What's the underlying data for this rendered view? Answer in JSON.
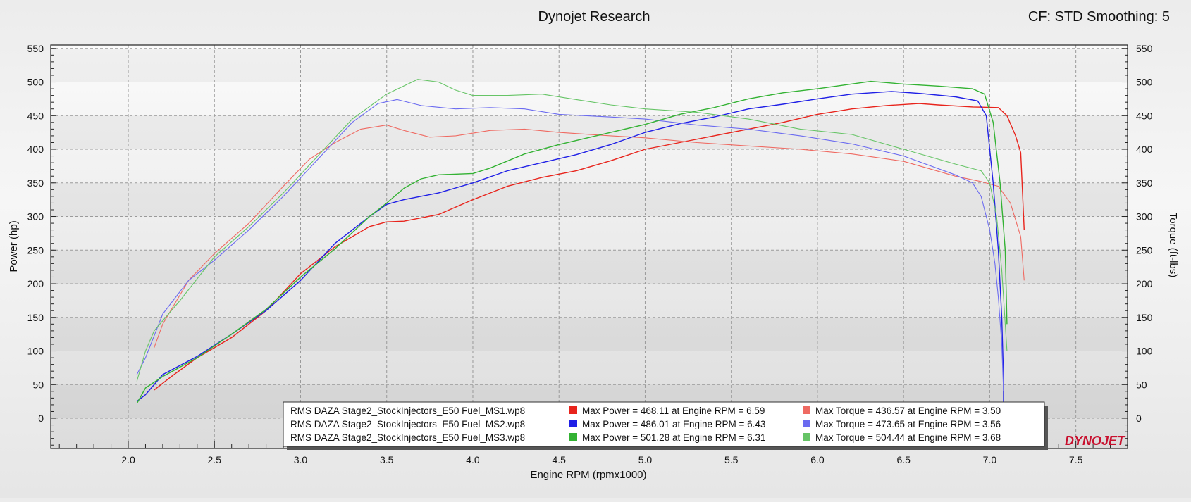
{
  "header": {
    "title": "Dynojet Research",
    "settings": "CF: STD Smoothing: 5"
  },
  "logo_text": "DYNOJET",
  "colors": {
    "run1_power": "#e8241c",
    "run1_torque": "#ef6a62",
    "run2_power": "#1f1fe6",
    "run2_torque": "#6b6bf0",
    "run3_power": "#33b233",
    "run3_torque": "#66c466"
  },
  "chart_data": {
    "type": "line",
    "title": "",
    "xlabel": "Engine RPM (rpmx1000)",
    "ylabel_left": "Power (hp)",
    "ylabel_right": "Torque (ft-lbs)",
    "xlim": [
      1.55,
      7.8
    ],
    "ylim": [
      -45,
      555
    ],
    "x_ticks": [
      2.0,
      2.5,
      3.0,
      3.5,
      4.0,
      4.5,
      5.0,
      5.5,
      6.0,
      6.5,
      7.0,
      7.5
    ],
    "x_tick_labels": [
      "2.0",
      "2.5",
      "3.0",
      "3.5",
      "4.0",
      "4.5",
      "5.0",
      "5.5",
      "6.0",
      "6.5",
      "7.0",
      "7.5"
    ],
    "y_ticks": [
      0,
      50,
      100,
      150,
      200,
      250,
      300,
      350,
      400,
      450,
      500,
      550
    ],
    "y_tick_labels": [
      "0",
      "50",
      "100",
      "150",
      "200",
      "250",
      "300",
      "350",
      "400",
      "450",
      "500",
      "550"
    ],
    "grid": true,
    "legend_position": "bottom-center",
    "series": [
      {
        "name": "RMS DAZA Stage2_StockInjectors_E50 Fuel_MS1.wp8",
        "kind": "power",
        "color_key": "run1_power",
        "width": 1.4,
        "points": [
          [
            2.15,
            42
          ],
          [
            2.25,
            62
          ],
          [
            2.4,
            90
          ],
          [
            2.6,
            120
          ],
          [
            2.8,
            160
          ],
          [
            3.0,
            215
          ],
          [
            3.2,
            255
          ],
          [
            3.4,
            285
          ],
          [
            3.5,
            292
          ],
          [
            3.6,
            293
          ],
          [
            3.8,
            303
          ],
          [
            4.0,
            325
          ],
          [
            4.2,
            345
          ],
          [
            4.4,
            358
          ],
          [
            4.6,
            368
          ],
          [
            4.8,
            383
          ],
          [
            5.0,
            400
          ],
          [
            5.2,
            410
          ],
          [
            5.4,
            420
          ],
          [
            5.6,
            430
          ],
          [
            5.8,
            440
          ],
          [
            6.0,
            452
          ],
          [
            6.2,
            460
          ],
          [
            6.4,
            465
          ],
          [
            6.59,
            468
          ],
          [
            6.7,
            466
          ],
          [
            6.9,
            463
          ],
          [
            7.05,
            462
          ],
          [
            7.1,
            450
          ],
          [
            7.15,
            420
          ],
          [
            7.18,
            395
          ],
          [
            7.2,
            280
          ]
        ]
      },
      {
        "name": "RMS DAZA Stage2_StockInjectors_E50 Fuel_MS1.wp8",
        "kind": "torque",
        "color_key": "run1_torque",
        "width": 1.1,
        "points": [
          [
            2.15,
            105
          ],
          [
            2.2,
            140
          ],
          [
            2.35,
            205
          ],
          [
            2.5,
            245
          ],
          [
            2.7,
            290
          ],
          [
            2.9,
            345
          ],
          [
            3.05,
            385
          ],
          [
            3.2,
            410
          ],
          [
            3.35,
            430
          ],
          [
            3.5,
            436
          ],
          [
            3.6,
            428
          ],
          [
            3.75,
            418
          ],
          [
            3.9,
            420
          ],
          [
            4.1,
            428
          ],
          [
            4.3,
            430
          ],
          [
            4.5,
            425
          ],
          [
            4.8,
            420
          ],
          [
            5.0,
            417
          ],
          [
            5.3,
            410
          ],
          [
            5.6,
            405
          ],
          [
            5.9,
            400
          ],
          [
            6.2,
            393
          ],
          [
            6.5,
            382
          ],
          [
            6.8,
            360
          ],
          [
            6.95,
            352
          ],
          [
            7.05,
            345
          ],
          [
            7.12,
            320
          ],
          [
            7.18,
            270
          ],
          [
            7.2,
            205
          ]
        ]
      },
      {
        "name": "RMS DAZA Stage2_StockInjectors_E50 Fuel_MS2.wp8",
        "kind": "power",
        "color_key": "run2_power",
        "width": 1.4,
        "points": [
          [
            2.05,
            25
          ],
          [
            2.1,
            35
          ],
          [
            2.2,
            65
          ],
          [
            2.4,
            92
          ],
          [
            2.6,
            125
          ],
          [
            2.8,
            160
          ],
          [
            3.0,
            205
          ],
          [
            3.2,
            260
          ],
          [
            3.4,
            300
          ],
          [
            3.5,
            318
          ],
          [
            3.6,
            325
          ],
          [
            3.8,
            335
          ],
          [
            4.0,
            350
          ],
          [
            4.2,
            368
          ],
          [
            4.4,
            380
          ],
          [
            4.6,
            392
          ],
          [
            4.8,
            407
          ],
          [
            5.0,
            425
          ],
          [
            5.2,
            438
          ],
          [
            5.4,
            448
          ],
          [
            5.6,
            460
          ],
          [
            5.8,
            467
          ],
          [
            6.0,
            475
          ],
          [
            6.2,
            482
          ],
          [
            6.43,
            486
          ],
          [
            6.6,
            483
          ],
          [
            6.8,
            478
          ],
          [
            6.93,
            472
          ],
          [
            6.98,
            450
          ],
          [
            7.02,
            350
          ],
          [
            7.05,
            250
          ],
          [
            7.07,
            150
          ],
          [
            7.08,
            60
          ],
          [
            7.08,
            0
          ]
        ]
      },
      {
        "name": "RMS DAZA Stage2_StockInjectors_E50 Fuel_MS2.wp8",
        "kind": "torque",
        "color_key": "run2_torque",
        "width": 1.1,
        "points": [
          [
            2.05,
            65
          ],
          [
            2.1,
            90
          ],
          [
            2.2,
            155
          ],
          [
            2.35,
            205
          ],
          [
            2.5,
            235
          ],
          [
            2.7,
            280
          ],
          [
            2.9,
            330
          ],
          [
            3.1,
            385
          ],
          [
            3.3,
            440
          ],
          [
            3.45,
            468
          ],
          [
            3.56,
            474
          ],
          [
            3.7,
            465
          ],
          [
            3.9,
            460
          ],
          [
            4.1,
            462
          ],
          [
            4.3,
            460
          ],
          [
            4.5,
            452
          ],
          [
            4.8,
            448
          ],
          [
            5.0,
            445
          ],
          [
            5.3,
            436
          ],
          [
            5.6,
            430
          ],
          [
            5.9,
            420
          ],
          [
            6.2,
            408
          ],
          [
            6.5,
            390
          ],
          [
            6.8,
            362
          ],
          [
            6.9,
            350
          ],
          [
            6.95,
            330
          ],
          [
            7.0,
            280
          ],
          [
            7.03,
            230
          ],
          [
            7.05,
            180
          ],
          [
            7.07,
            110
          ],
          [
            7.08,
            40
          ]
        ]
      },
      {
        "name": "RMS DAZA Stage2_StockInjectors_E50 Fuel_MS3.wp8",
        "kind": "power",
        "color_key": "run3_power",
        "width": 1.4,
        "points": [
          [
            2.05,
            22
          ],
          [
            2.1,
            45
          ],
          [
            2.2,
            62
          ],
          [
            2.4,
            90
          ],
          [
            2.6,
            125
          ],
          [
            2.8,
            162
          ],
          [
            3.0,
            210
          ],
          [
            3.2,
            252
          ],
          [
            3.4,
            300
          ],
          [
            3.5,
            320
          ],
          [
            3.6,
            342
          ],
          [
            3.7,
            356
          ],
          [
            3.8,
            362
          ],
          [
            4.0,
            364
          ],
          [
            4.1,
            372
          ],
          [
            4.3,
            393
          ],
          [
            4.5,
            407
          ],
          [
            4.8,
            425
          ],
          [
            5.0,
            437
          ],
          [
            5.2,
            452
          ],
          [
            5.4,
            462
          ],
          [
            5.6,
            475
          ],
          [
            5.8,
            484
          ],
          [
            6.0,
            490
          ],
          [
            6.31,
            501
          ],
          [
            6.5,
            497
          ],
          [
            6.7,
            494
          ],
          [
            6.9,
            490
          ],
          [
            6.97,
            482
          ],
          [
            7.02,
            440
          ],
          [
            7.06,
            350
          ],
          [
            7.09,
            250
          ],
          [
            7.1,
            140
          ]
        ]
      },
      {
        "name": "RMS DAZA Stage2_StockInjectors_E50 Fuel_MS3.wp8",
        "kind": "torque",
        "color_key": "run3_torque",
        "width": 1.1,
        "points": [
          [
            2.05,
            55
          ],
          [
            2.1,
            100
          ],
          [
            2.15,
            130
          ],
          [
            2.3,
            175
          ],
          [
            2.5,
            240
          ],
          [
            2.7,
            285
          ],
          [
            2.9,
            335
          ],
          [
            3.1,
            390
          ],
          [
            3.3,
            445
          ],
          [
            3.5,
            482
          ],
          [
            3.68,
            504
          ],
          [
            3.8,
            500
          ],
          [
            3.9,
            488
          ],
          [
            4.0,
            480
          ],
          [
            4.2,
            480
          ],
          [
            4.4,
            482
          ],
          [
            4.6,
            474
          ],
          [
            4.8,
            466
          ],
          [
            5.0,
            460
          ],
          [
            5.3,
            455
          ],
          [
            5.6,
            445
          ],
          [
            5.9,
            430
          ],
          [
            6.2,
            422
          ],
          [
            6.5,
            400
          ],
          [
            6.8,
            378
          ],
          [
            6.95,
            368
          ],
          [
            7.0,
            350
          ],
          [
            7.04,
            300
          ],
          [
            7.07,
            220
          ],
          [
            7.1,
            100
          ]
        ]
      }
    ],
    "legend_rows": [
      {
        "file": "RMS DAZA Stage2_StockInjectors_E50 Fuel_MS1.wp8",
        "power_text": "Max Power = 468.11 at Engine RPM = 6.59",
        "torque_text": "Max Torque = 436.57 at Engine RPM = 3.50",
        "power_color_key": "run1_power",
        "torque_color_key": "run1_torque"
      },
      {
        "file": "RMS DAZA Stage2_StockInjectors_E50 Fuel_MS2.wp8",
        "power_text": "Max Power = 486.01 at Engine RPM = 6.43",
        "torque_text": "Max Torque = 473.65 at Engine RPM = 3.56",
        "power_color_key": "run2_power",
        "torque_color_key": "run2_torque"
      },
      {
        "file": "RMS DAZA Stage2_StockInjectors_E50 Fuel_MS3.wp8",
        "power_text": "Max Power = 501.28 at Engine RPM = 6.31",
        "torque_text": "Max Torque = 504.44 at Engine RPM = 3.68",
        "power_color_key": "run3_power",
        "torque_color_key": "run3_torque"
      }
    ]
  }
}
